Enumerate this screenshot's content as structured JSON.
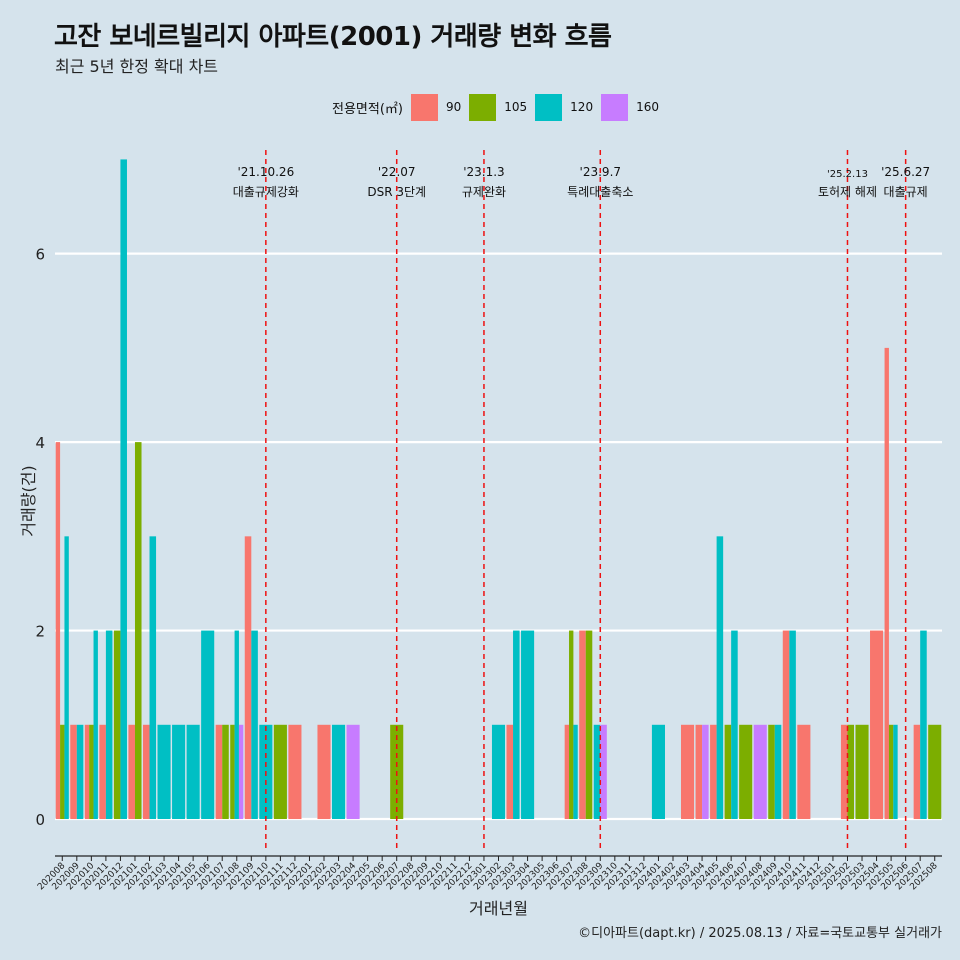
{
  "title": "고잔 보네르빌리지 아파트(2001) 거래량 변화 흐름",
  "subtitle": "최근 5년 한정 확대 차트",
  "caption": "©디아파트(dapt.kr) / 2025.08.13 / 자료=국토교통부 실거래가",
  "legend": {
    "title": "전용면적(㎡)",
    "items": [
      {
        "label": "90",
        "color": "#f8766d"
      },
      {
        "label": "105",
        "color": "#7cae00"
      },
      {
        "label": "120",
        "color": "#00bfc4"
      },
      {
        "label": "160",
        "color": "#c77cff"
      }
    ]
  },
  "chart_data": {
    "type": "bar",
    "xlabel": "거래년월",
    "ylabel": "거래량(건)",
    "ylim": [
      -0.35,
      7.1
    ],
    "yticks": [
      0,
      2,
      4,
      6
    ],
    "grid": true,
    "categories": [
      "202008",
      "202009",
      "202010",
      "202011",
      "202012",
      "202101",
      "202102",
      "202103",
      "202104",
      "202105",
      "202106",
      "202107",
      "202108",
      "202109",
      "202110",
      "202111",
      "202112",
      "202201",
      "202202",
      "202203",
      "202204",
      "202205",
      "202206",
      "202207",
      "202208",
      "202209",
      "202210",
      "202211",
      "202212",
      "202301",
      "202302",
      "202303",
      "202304",
      "202305",
      "202306",
      "202307",
      "202308",
      "202309",
      "202310",
      "202311",
      "202312",
      "202401",
      "202402",
      "202403",
      "202404",
      "202405",
      "202406",
      "202407",
      "202408",
      "202409",
      "202410",
      "202411",
      "202412",
      "202501",
      "202502",
      "202503",
      "202504",
      "202505",
      "202506",
      "202507",
      "202508"
    ],
    "series": [
      {
        "name": "90",
        "values": [
          4,
          1,
          1,
          1,
          0,
          1,
          1,
          0,
          0,
          0,
          0,
          1,
          0,
          3,
          0,
          0,
          1,
          0,
          1,
          0,
          0,
          0,
          0,
          0,
          0,
          0,
          0,
          0,
          0,
          0,
          0,
          1,
          0,
          0,
          0,
          1,
          2,
          0,
          0,
          0,
          0,
          0,
          0,
          1,
          1,
          1,
          0,
          0,
          0,
          0,
          2,
          1,
          0,
          0,
          1,
          0,
          2,
          5,
          0,
          1,
          0
        ]
      },
      {
        "name": "105",
        "values": [
          1,
          0,
          1,
          0,
          2,
          4,
          0,
          0,
          0,
          0,
          0,
          1,
          1,
          0,
          0,
          1,
          0,
          0,
          0,
          0,
          0,
          0,
          0,
          1,
          0,
          0,
          0,
          0,
          0,
          0,
          0,
          0,
          0,
          0,
          0,
          2,
          2,
          0,
          0,
          0,
          0,
          0,
          0,
          0,
          0,
          0,
          1,
          1,
          0,
          1,
          0,
          0,
          0,
          0,
          1,
          1,
          0,
          1,
          0,
          0,
          1
        ]
      },
      {
        "name": "120",
        "values": [
          3,
          1,
          2,
          2,
          7,
          0,
          3,
          1,
          1,
          1,
          2,
          0,
          2,
          2,
          1,
          0,
          0,
          0,
          0,
          1,
          0,
          0,
          0,
          0,
          0,
          0,
          0,
          0,
          0,
          0,
          1,
          2,
          2,
          0,
          0,
          1,
          0,
          1,
          0,
          0,
          0,
          1,
          0,
          0,
          0,
          3,
          2,
          0,
          0,
          1,
          2,
          0,
          0,
          0,
          0,
          0,
          0,
          1,
          0,
          2,
          0
        ]
      },
      {
        "name": "160",
        "values": [
          0,
          0,
          0,
          0,
          0,
          0,
          0,
          0,
          0,
          0,
          0,
          0,
          1,
          0,
          0,
          0,
          0,
          0,
          0,
          0,
          1,
          0,
          0,
          0,
          0,
          0,
          0,
          0,
          0,
          0,
          0,
          0,
          0,
          0,
          0,
          0,
          0,
          1,
          0,
          0,
          0,
          0,
          0,
          0,
          1,
          0,
          0,
          0,
          1,
          0,
          0,
          0,
          0,
          0,
          0,
          0,
          0,
          0,
          0,
          0,
          0
        ]
      }
    ],
    "events": [
      {
        "x": "202110",
        "date": "'21.10.26",
        "label": "대출규제강화"
      },
      {
        "x": "202207",
        "date": "'22.07",
        "label": "DSR 3단계"
      },
      {
        "x": "202301",
        "date": "'23.1.3",
        "label": "규제완화"
      },
      {
        "x": "202309",
        "date": "'23.9.7",
        "label": "특례대출축소"
      },
      {
        "x": "202502",
        "date": "'25.2.13",
        "label": "토허제 해제"
      },
      {
        "x": "202506",
        "date": "'25.6.27",
        "label": "대출규제"
      }
    ]
  }
}
